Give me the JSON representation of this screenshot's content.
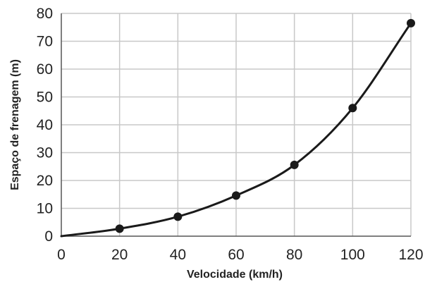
{
  "chart_data": {
    "type": "line",
    "title": "",
    "xlabel": "Velocidade (km/h)",
    "ylabel": "Espaço de frenagem (m)",
    "xlim": [
      0,
      120
    ],
    "ylim": [
      0,
      80
    ],
    "xticks": [
      0,
      20,
      40,
      60,
      80,
      100,
      120
    ],
    "yticks": [
      0,
      10,
      20,
      30,
      40,
      50,
      60,
      70,
      80
    ],
    "grid": true,
    "markers": true,
    "smooth": true,
    "colors": {
      "line": "#1a1a1a",
      "marker": "#1a1a1a",
      "grid": "#c8c8c8",
      "axis": "#555555"
    },
    "series": [
      {
        "x": [
          0,
          20,
          40,
          60,
          80,
          100,
          120
        ],
        "y": [
          0,
          2.7,
          7,
          14.6,
          25.6,
          46,
          76.5
        ]
      }
    ]
  }
}
